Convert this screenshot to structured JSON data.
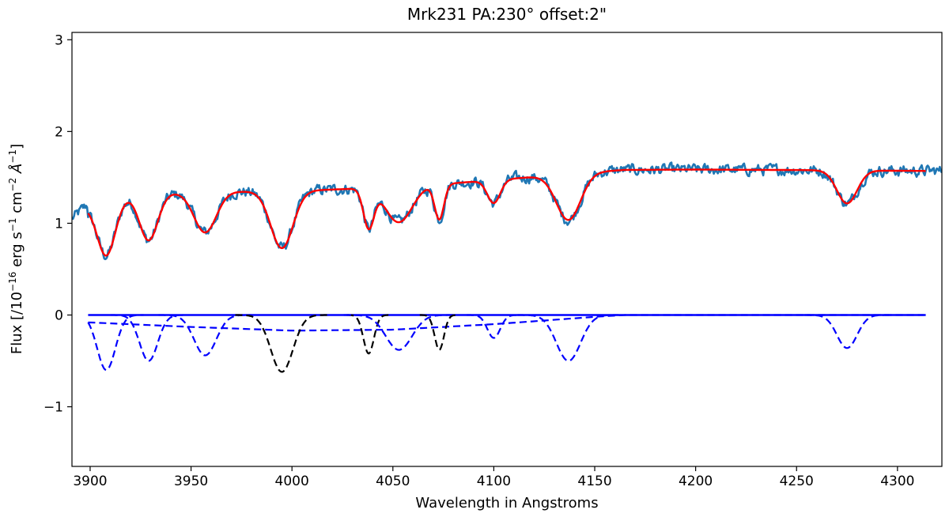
{
  "chart_data": {
    "type": "line",
    "title": "Mrk231 PA:230° offset:2\"",
    "xlabel": "Wavelength in Angstroms",
    "ylabel": "Flux  [/10^-16 erg s^-1 cm^-2 Å^-1]",
    "ylabel_parts": {
      "a": "Flux  [/10",
      "a_sup": "−16",
      "b": " erg s",
      "b_sup": "−1",
      "c": " cm",
      "c_sup": "−2",
      "d": " Å",
      "d_sup": "−1",
      "e": "]"
    },
    "xlim": [
      3891,
      4322
    ],
    "ylim": [
      -1.65,
      3.08
    ],
    "xticks": [
      3900,
      3950,
      4000,
      4050,
      4100,
      4150,
      4200,
      4250,
      4300
    ],
    "yticks": [
      -1,
      0,
      1,
      2,
      3
    ],
    "xtick_labels": [
      "3900",
      "3950",
      "4000",
      "4050",
      "4100",
      "4150",
      "4200",
      "4250",
      "4300"
    ],
    "ytick_labels": [
      "−1",
      "0",
      "1",
      "2",
      "3"
    ],
    "grid": false,
    "colors": {
      "observed": "#1f77b4",
      "fit": "#ff0000",
      "stellar_components": "#0000ff",
      "ism_components": "#000000"
    },
    "observed_spectrum": {
      "name": "",
      "x_range": [
        3891,
        4322
      ],
      "step": 0.5,
      "noise_amplitude": 0.05
    },
    "model_fit": {
      "name": "",
      "x_range": [
        3899,
        4314
      ],
      "continuum": [
        [
          3899,
          1.27
        ],
        [
          3905,
          1.32
        ],
        [
          3920,
          1.4
        ],
        [
          3940,
          1.45
        ],
        [
          3960,
          1.48
        ],
        [
          3980,
          1.5
        ],
        [
          4000,
          1.52
        ],
        [
          4030,
          1.54
        ],
        [
          4060,
          1.55
        ],
        [
          4100,
          1.57
        ],
        [
          4150,
          1.58
        ],
        [
          4200,
          1.585
        ],
        [
          4250,
          1.58
        ],
        [
          4314,
          1.57
        ]
      ]
    },
    "absorption_components": [
      {
        "color": "blue",
        "center": 3908,
        "depth": 0.6,
        "sigma": 4.5
      },
      {
        "color": "blue",
        "center": 3929,
        "depth": 0.5,
        "sigma": 4.5
      },
      {
        "color": "blue",
        "center": 3957,
        "depth": 0.44,
        "sigma": 5.5
      },
      {
        "color": "black",
        "center": 3995,
        "depth": 0.62,
        "sigma": 5.5
      },
      {
        "color": "black",
        "center": 4038,
        "depth": 0.42,
        "sigma": 2.6
      },
      {
        "color": "blue",
        "center": 4053,
        "depth": 0.38,
        "sigma": 6.5
      },
      {
        "color": "black",
        "center": 4073,
        "depth": 0.38,
        "sigma": 2.3
      },
      {
        "color": "blue",
        "center": 4100,
        "depth": 0.25,
        "sigma": 3.2
      },
      {
        "color": "blue",
        "center": 4137,
        "depth": 0.5,
        "sigma": 6.0
      },
      {
        "color": "blue",
        "center": 4275,
        "depth": 0.36,
        "sigma": 5.0
      }
    ],
    "broad_component": {
      "color": "blue",
      "points": [
        [
          3899,
          -0.08
        ],
        [
          3950,
          -0.13
        ],
        [
          4000,
          -0.17
        ],
        [
          4050,
          -0.16
        ],
        [
          4100,
          -0.1
        ],
        [
          4150,
          -0.02
        ],
        [
          4165,
          0.0
        ],
        [
          4314,
          0.0
        ]
      ]
    },
    "zero_line": {
      "color": "blue",
      "x_range": [
        3899,
        4314
      ],
      "value": 0.0
    }
  }
}
